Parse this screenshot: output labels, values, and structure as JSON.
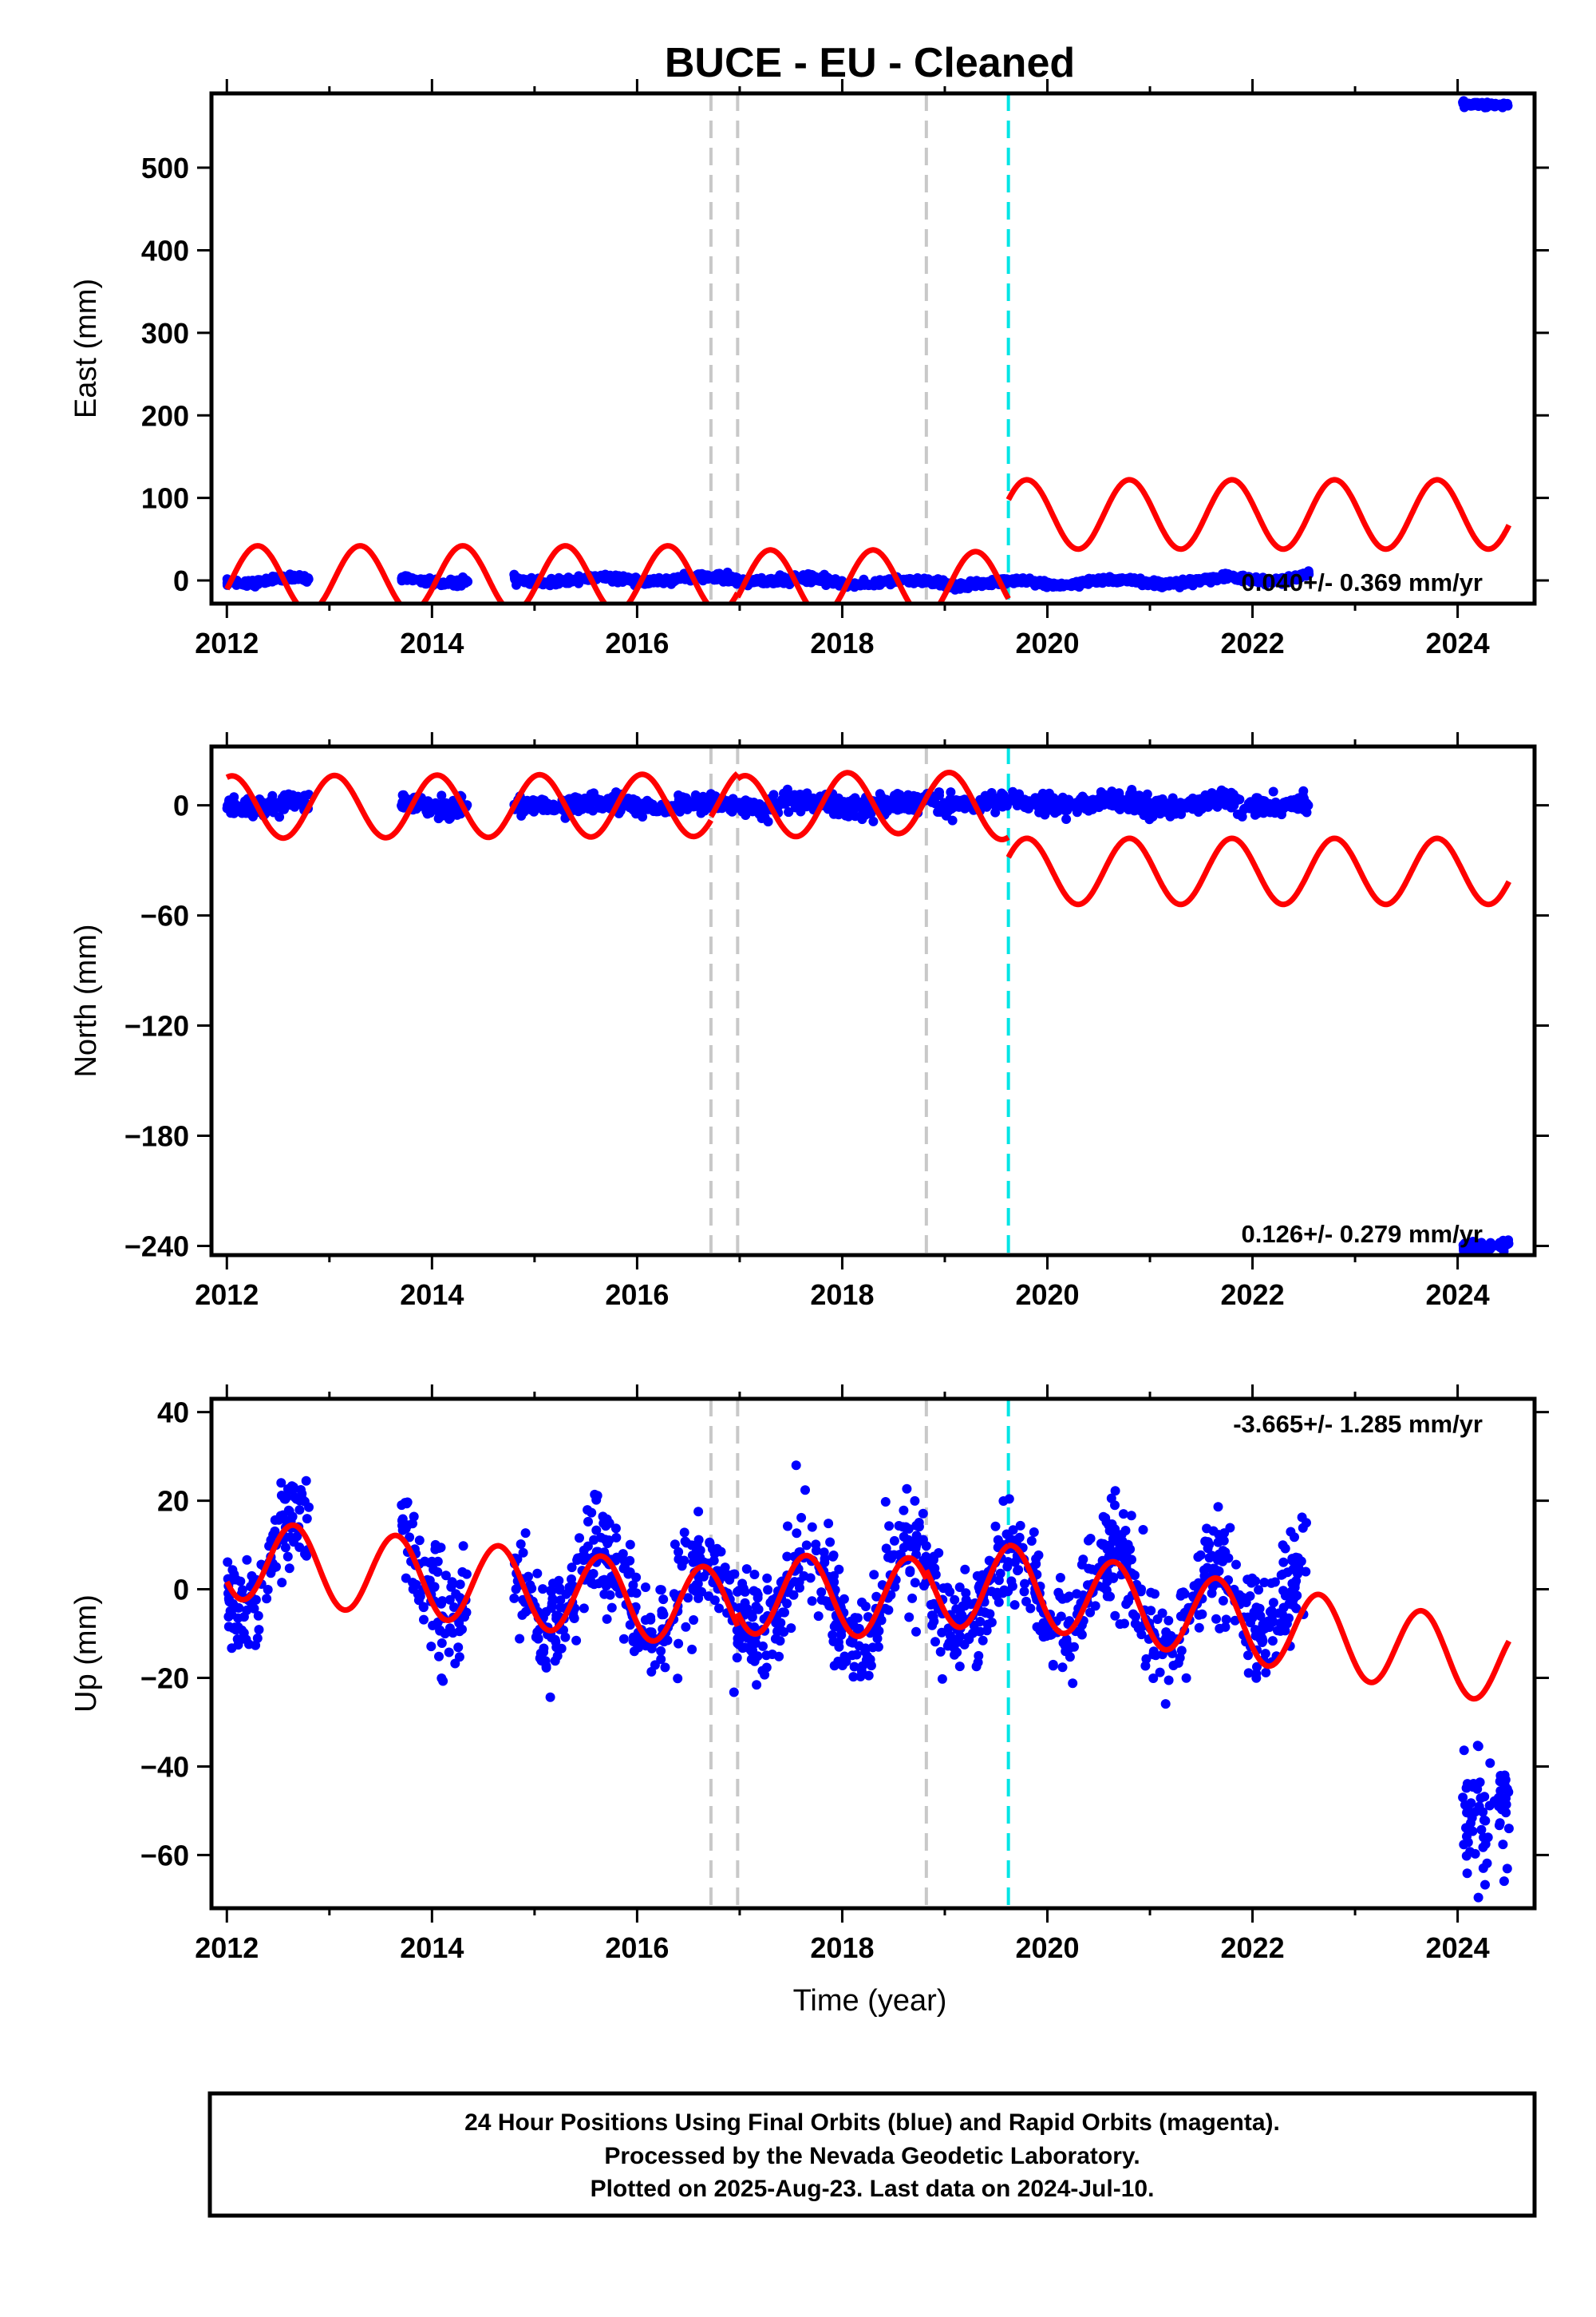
{
  "figure": {
    "title": "BUCE  - EU - Cleaned",
    "xlabel": "Time (year)",
    "footer": [
      "24 Hour Positions Using Final Orbits (blue) and Rapid Orbits (magenta).",
      "Processed by the Nevada Geodetic Laboratory.",
      "Plotted on 2025-Aug-23. Last data on 2024-Jul-10."
    ],
    "colors": {
      "data": "#0000ff",
      "model": "#ff0000",
      "event": "#c8c8c8",
      "antenna": "#00e5e5",
      "frame": "#000000"
    }
  },
  "chart_data": [
    {
      "type": "scatter",
      "ylabel": "East (mm)",
      "xlim": [
        2011.85,
        2024.75
      ],
      "ylim": [
        -28,
        590
      ],
      "xticks": [
        2012,
        2014,
        2016,
        2018,
        2020,
        2022,
        2024
      ],
      "yticks": [
        0,
        100,
        200,
        300,
        400,
        500
      ],
      "rate_label": "0.040+/- 0.369 mm/yr",
      "rate_position": "bottom-right",
      "event_lines": [
        2016.72,
        2016.98,
        2018.82
      ],
      "antenna_lines": [
        2019.62
      ],
      "data_segments": [
        {
          "x": [
            2012.0,
            2012.8
          ],
          "center": [
            0,
            0
          ],
          "amp": 4,
          "noise": 2
        },
        {
          "x": [
            2013.7,
            2014.35
          ],
          "center": [
            0,
            0
          ],
          "amp": 3,
          "noise": 2
        },
        {
          "x": [
            2014.8,
            2016.75
          ],
          "center": [
            0,
            2
          ],
          "amp": 3,
          "noise": 2
        },
        {
          "x": [
            2016.75,
            2018.0
          ],
          "center": [
            2,
            -1
          ],
          "amp": 4,
          "noise": 2.5
        },
        {
          "x": [
            2017.9,
            2019.6
          ],
          "center": [
            -2,
            -3
          ],
          "amp": 3,
          "noise": 2
        },
        {
          "x": [
            2019.6,
            2021.7
          ],
          "center": [
            -3,
            -1
          ],
          "amp": 3,
          "noise": 2
        },
        {
          "x": [
            2021.7,
            2022.55
          ],
          "center": [
            2,
            4
          ],
          "amp": 4,
          "noise": 2
        },
        {
          "x": [
            2024.05,
            2024.5
          ],
          "center": [
            580,
            575
          ],
          "amp": 2,
          "noise": 1.5
        }
      ],
      "model_segments": [
        {
          "x": [
            2012.0,
            2016.72
          ],
          "center": [
            2,
            2
          ],
          "amp": 40,
          "phase": 2012.05
        },
        {
          "x": [
            2016.72,
            2016.98
          ],
          "center": [
            2,
            2
          ],
          "amp": 40,
          "phase": 2012.05
        },
        {
          "x": [
            2016.98,
            2018.82
          ],
          "center": [
            -3,
            -3
          ],
          "amp": 40,
          "phase": 2012.05
        },
        {
          "x": [
            2018.82,
            2019.62
          ],
          "center": [
            -5,
            -5
          ],
          "amp": 40,
          "phase": 2012.05
        },
        {
          "x": [
            2019.62,
            2024.5
          ],
          "center": [
            80,
            80
          ],
          "amp": 42,
          "phase": 2019.55
        }
      ]
    },
    {
      "type": "scatter",
      "ylabel": "North (mm)",
      "xlim": [
        2011.85,
        2024.75
      ],
      "ylim": [
        -245,
        32
      ],
      "xticks": [
        2012,
        2014,
        2016,
        2018,
        2020,
        2022,
        2024
      ],
      "yticks": [
        0,
        -60,
        -120,
        -180,
        -240
      ],
      "rate_label": "0.126+/- 0.279 mm/yr",
      "rate_position": "bottom-right",
      "event_lines": [
        2016.72,
        2016.98,
        2018.82
      ],
      "antenna_lines": [
        2019.62
      ],
      "data_segments": [
        {
          "x": [
            2012.0,
            2012.8
          ],
          "center": [
            0,
            0
          ],
          "amp": 1.5,
          "noise": 2.5
        },
        {
          "x": [
            2013.7,
            2014.35
          ],
          "center": [
            1,
            0
          ],
          "amp": 2,
          "noise": 2.5
        },
        {
          "x": [
            2014.8,
            2016.75
          ],
          "center": [
            0,
            0
          ],
          "amp": 1.5,
          "noise": 2.5
        },
        {
          "x": [
            2016.75,
            2018.0
          ],
          "center": [
            0,
            0
          ],
          "amp": 2,
          "noise": 2.5
        },
        {
          "x": [
            2017.9,
            2019.6
          ],
          "center": [
            0,
            2
          ],
          "amp": 1.5,
          "noise": 2.5
        },
        {
          "x": [
            2019.6,
            2021.7
          ],
          "center": [
            1,
            1
          ],
          "amp": 2,
          "noise": 2.5
        },
        {
          "x": [
            2021.7,
            2022.55
          ],
          "center": [
            1,
            0
          ],
          "amp": 2,
          "noise": 2.5
        },
        {
          "x": [
            2024.05,
            2024.5
          ],
          "center": [
            -240,
            -240
          ],
          "amp": 1,
          "noise": 1.5
        }
      ],
      "model_segments": [
        {
          "x": [
            2012.0,
            2016.72
          ],
          "center": [
            -1,
            0
          ],
          "amp": 17,
          "phase": 2011.8
        },
        {
          "x": [
            2016.72,
            2016.98
          ],
          "center": [
            2,
            2
          ],
          "amp": 17,
          "phase": 2011.8
        },
        {
          "x": [
            2016.98,
            2018.82
          ],
          "center": [
            -1,
            2
          ],
          "amp": 17,
          "phase": 2011.8
        },
        {
          "x": [
            2018.82,
            2019.62
          ],
          "center": [
            2,
            -2
          ],
          "amp": 17,
          "phase": 2011.8
        },
        {
          "x": [
            2019.62,
            2024.5
          ],
          "center": [
            -36,
            -36
          ],
          "amp": 18,
          "phase": 2019.55
        }
      ]
    },
    {
      "type": "scatter",
      "ylabel": "Up (mm)",
      "xlim": [
        2011.85,
        2024.75
      ],
      "ylim": [
        -72,
        43
      ],
      "xticks": [
        2012,
        2014,
        2016,
        2018,
        2020,
        2022,
        2024
      ],
      "yticks": [
        40,
        20,
        0,
        -20,
        -40,
        -60
      ],
      "rate_label": "-3.665+/- 1.285 mm/yr",
      "rate_position": "top-right",
      "event_lines": [
        2016.72,
        2016.98,
        2018.82
      ],
      "antenna_lines": [
        2019.62
      ],
      "data_segments": [
        {
          "x": [
            2012.0,
            2012.8
          ],
          "center": [
            4,
            8
          ],
          "amp": 10,
          "noise": 5.5
        },
        {
          "x": [
            2013.7,
            2014.35
          ],
          "center": [
            4,
            2
          ],
          "amp": 9,
          "noise": 6
        },
        {
          "x": [
            2014.8,
            2016.75
          ],
          "center": [
            0,
            -2
          ],
          "amp": 9,
          "noise": 6
        },
        {
          "x": [
            2016.75,
            2018.0
          ],
          "center": [
            -2,
            -2
          ],
          "amp": 9,
          "noise": 6
        },
        {
          "x": [
            2017.9,
            2019.6
          ],
          "center": [
            -2,
            0
          ],
          "amp": 9,
          "noise": 6
        },
        {
          "x": [
            2019.6,
            2021.7
          ],
          "center": [
            0,
            -4
          ],
          "amp": 9,
          "noise": 6
        },
        {
          "x": [
            2021.7,
            2022.55
          ],
          "center": [
            -5,
            2
          ],
          "amp": 9,
          "noise": 6
        },
        {
          "x": [
            2024.05,
            2024.5
          ],
          "center": [
            -50,
            -50
          ],
          "amp": 2,
          "noise": 6.5
        }
      ],
      "model_segments": [
        {
          "x": [
            2012.0,
            2016.72
          ],
          "center": [
            7,
            -4
          ],
          "amp": 9,
          "phase": 2012.4
        },
        {
          "x": [
            2016.72,
            2016.98
          ],
          "center": [
            -4,
            -4
          ],
          "amp": 9,
          "phase": 2012.4
        },
        {
          "x": [
            2016.98,
            2018.82
          ],
          "center": [
            -1,
            -2
          ],
          "amp": 9,
          "phase": 2012.4
        },
        {
          "x": [
            2018.82,
            2019.62
          ],
          "center": [
            0,
            1
          ],
          "amp": 9,
          "phase": 2012.4
        },
        {
          "x": [
            2019.62,
            2024.5
          ],
          "center": [
            1,
            -17
          ],
          "amp": 9,
          "phase": 2012.4
        }
      ]
    }
  ]
}
